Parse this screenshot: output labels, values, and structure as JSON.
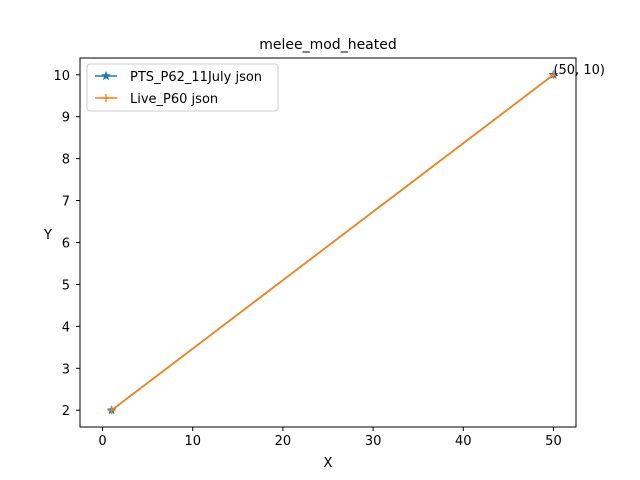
{
  "chart_data": {
    "type": "line",
    "title": "melee_mod_heated",
    "xlabel": "X",
    "ylabel": "Y",
    "xlim": [
      -2.5,
      52.5
    ],
    "ylim": [
      1.6,
      10.4
    ],
    "xticks": [
      0,
      10,
      20,
      30,
      40,
      50
    ],
    "yticks": [
      2,
      3,
      4,
      5,
      6,
      7,
      8,
      9,
      10
    ],
    "grid": false,
    "legend_position": "upper-left",
    "series": [
      {
        "name": "PTS_P62_11July json",
        "x": [
          1,
          50
        ],
        "y": [
          2,
          10
        ],
        "color": "#1f77b4",
        "marker": "star"
      },
      {
        "name": "Live_P60 json",
        "x": [
          1,
          50
        ],
        "y": [
          2,
          10
        ],
        "color": "#ff7f0e",
        "marker": "plus"
      }
    ],
    "annotations": [
      {
        "text": "(50, 10)",
        "x": 50,
        "y": 10
      }
    ]
  }
}
